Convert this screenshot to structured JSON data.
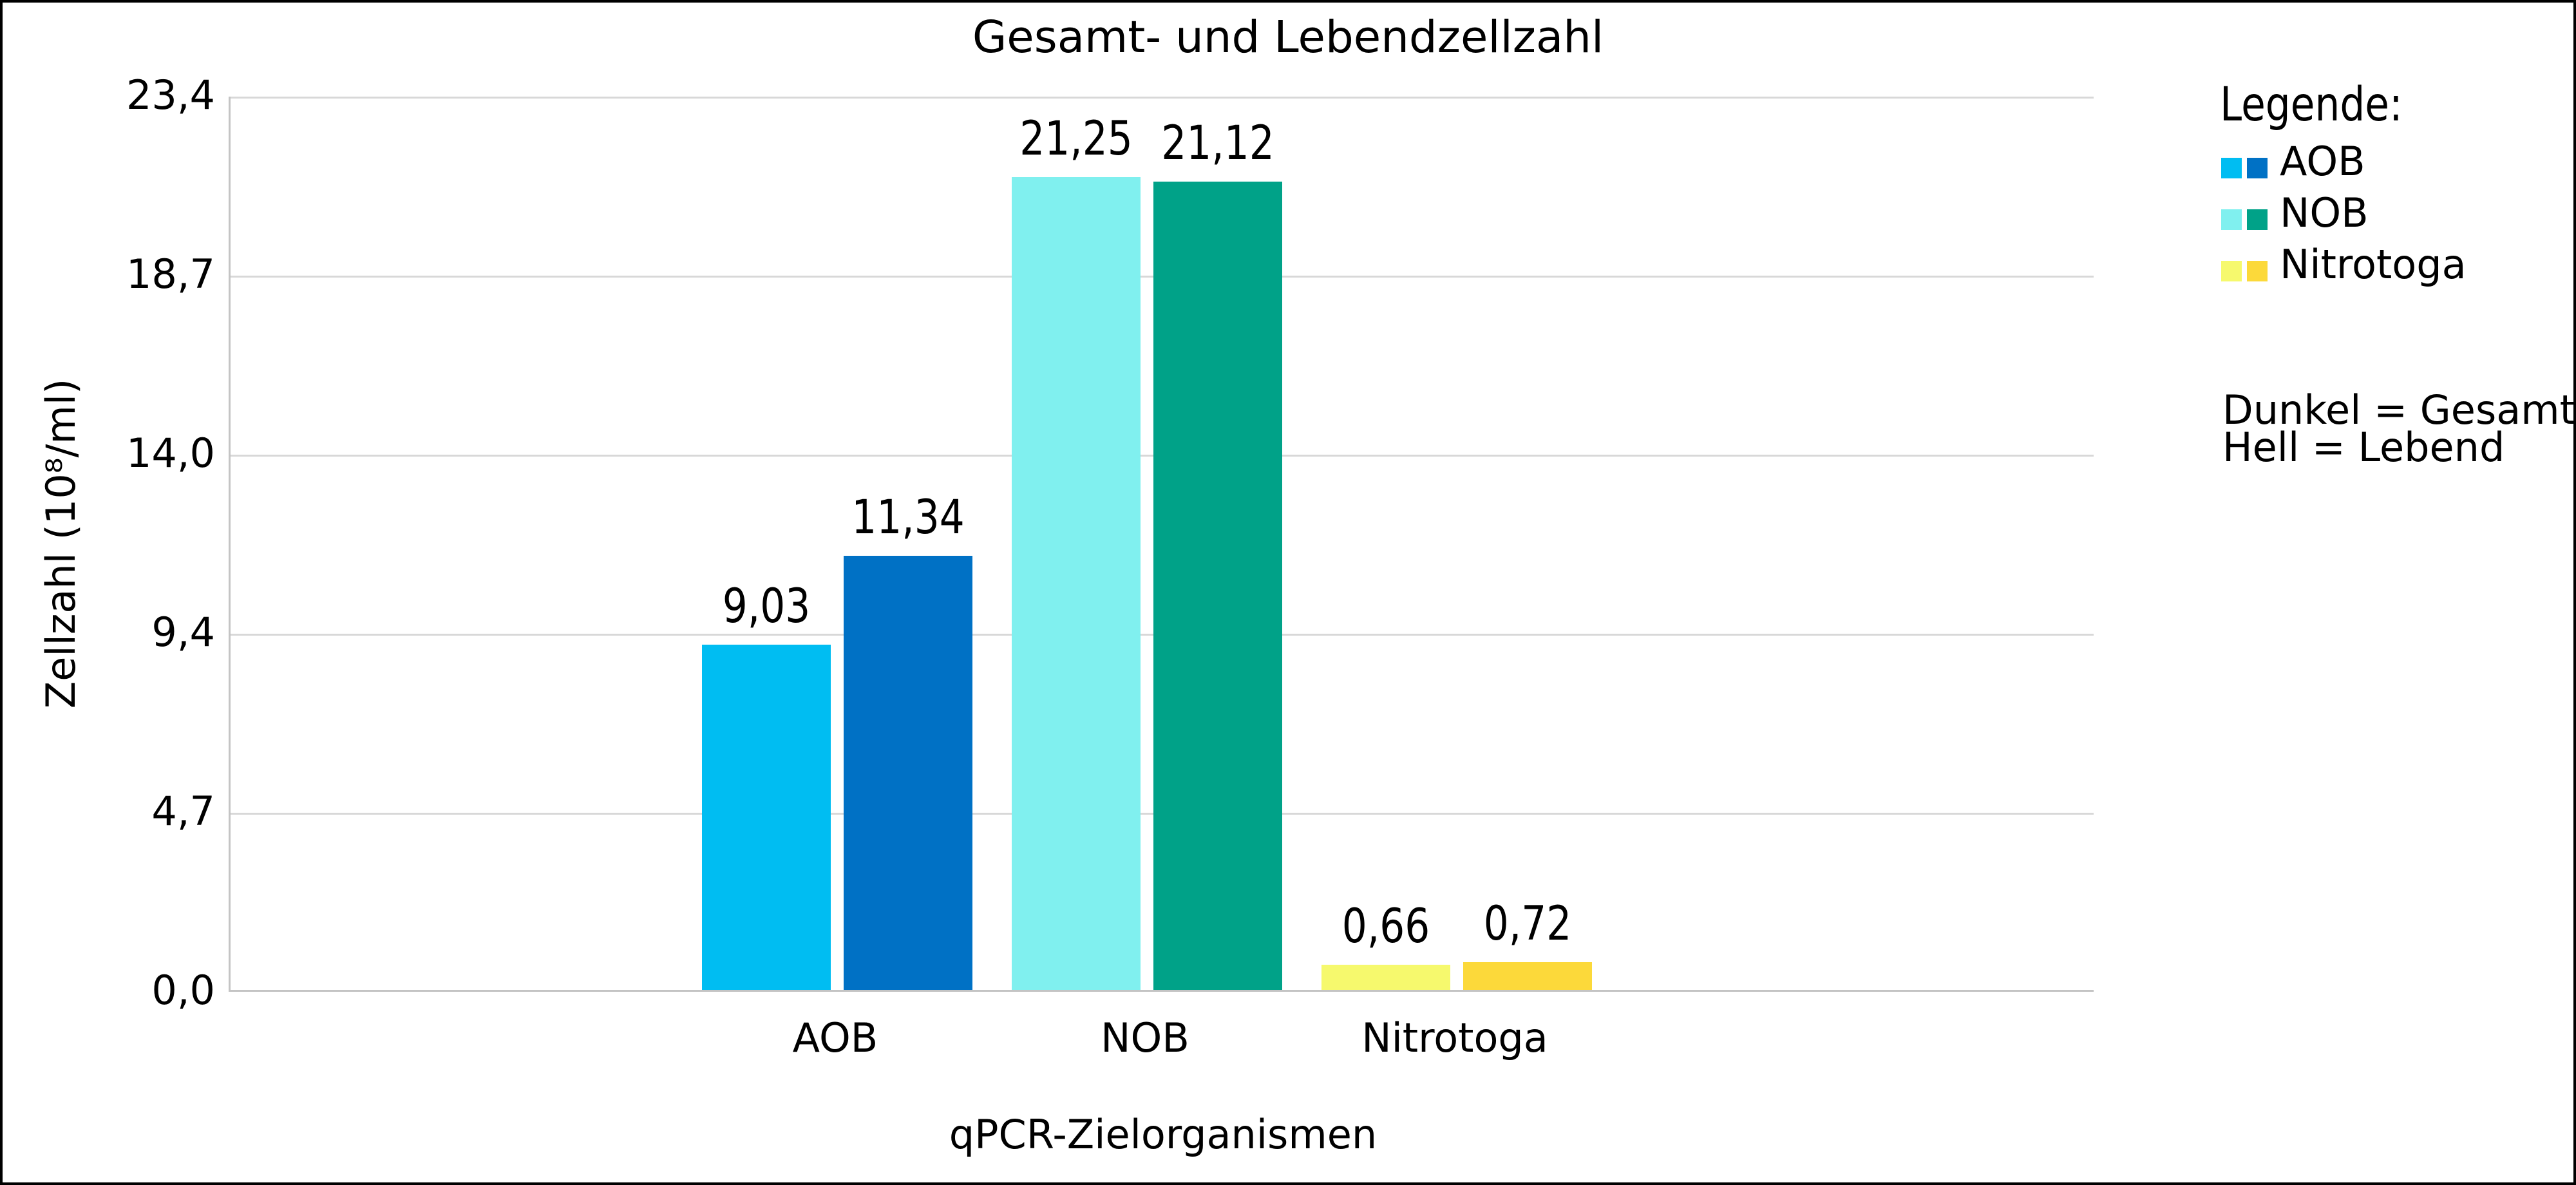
{
  "chart_data": {
    "type": "bar",
    "title": "Gesamt- und Lebendzellzahl",
    "xlabel": "qPCR-Zielorganismen",
    "ylabel": "Zellzahl (10⁸/ml)",
    "ylim": [
      0,
      23.4
    ],
    "grid": true,
    "ytick_labels": [
      "0,0",
      "4,7",
      "9,4",
      "14,0",
      "18,7",
      "23,4"
    ],
    "categories": [
      "AOB",
      "NOB",
      "Nitrotoga"
    ],
    "series": [
      {
        "name": "Hell = Lebend",
        "values": [
          9.03,
          21.25,
          0.66
        ],
        "value_labels": [
          "9,03",
          "21,25",
          "0,66"
        ],
        "colors": [
          "#00bdf2",
          "#80f0ef",
          "#f6f96d"
        ]
      },
      {
        "name": "Dunkel = Gesamt",
        "values": [
          11.34,
          21.12,
          0.72
        ],
        "value_labels": [
          "11,34",
          "21,12",
          "0,72"
        ],
        "colors": [
          "#0071c5",
          "#00a288",
          "#fcd93a"
        ]
      }
    ],
    "legend": {
      "title": "Legende:",
      "items": [
        {
          "label": "AOB",
          "colors": [
            "#00bdf2",
            "#0071c5"
          ]
        },
        {
          "label": "NOB",
          "colors": [
            "#80f0ef",
            "#00a288"
          ]
        },
        {
          "label": "Nitrotoga",
          "colors": [
            "#f6f96d",
            "#fcd93a"
          ]
        }
      ],
      "note": [
        "Dunkel = Gesamt",
        "Hell = Lebend"
      ]
    }
  }
}
